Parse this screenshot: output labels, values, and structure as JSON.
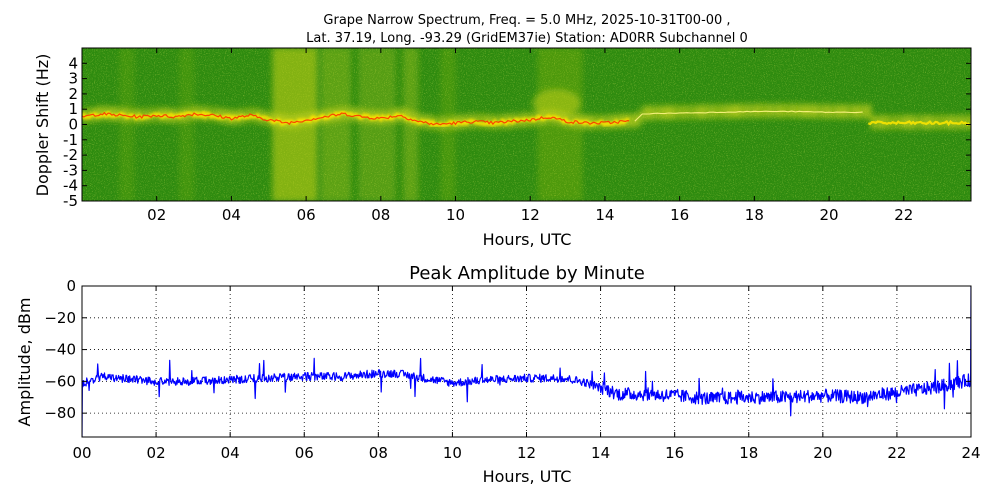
{
  "figure": {
    "title_line_1": "Grape Narrow Spectrum, Freq. = 5.0 MHz, 2025-10-31T00-00 ,",
    "title_line_2": "Lat.  37.19, Long. -93.29 (GridEM37ie) Station: AD0RR Subchannel 0"
  },
  "chart_data": [
    {
      "type": "heatmap",
      "name": "doppler-spectrogram",
      "xlabel": "Hours, UTC",
      "ylabel": "Doppler Shift (Hz)",
      "xlim": [
        0,
        23.8
      ],
      "ylim": [
        -5,
        5
      ],
      "x_ticks": [
        {
          "value": 2,
          "label": "02"
        },
        {
          "value": 4,
          "label": "04"
        },
        {
          "value": 6,
          "label": "06"
        },
        {
          "value": 8,
          "label": "08"
        },
        {
          "value": 10,
          "label": "10"
        },
        {
          "value": 12,
          "label": "12"
        },
        {
          "value": 14,
          "label": "14"
        },
        {
          "value": 16,
          "label": "16"
        },
        {
          "value": 18,
          "label": "18"
        },
        {
          "value": 20,
          "label": "20"
        },
        {
          "value": 22,
          "label": "22"
        }
      ],
      "y_ticks": [
        {
          "value": 4,
          "label": "4"
        },
        {
          "value": 3,
          "label": "3"
        },
        {
          "value": 2,
          "label": "2"
        },
        {
          "value": 1,
          "label": "1"
        },
        {
          "value": 0,
          "label": "0"
        },
        {
          "value": -1,
          "label": "-1"
        },
        {
          "value": -2,
          "label": "-2"
        },
        {
          "value": -3,
          "label": "-3"
        },
        {
          "value": -4,
          "label": "-4"
        },
        {
          "value": -5,
          "label": "-5"
        }
      ],
      "colors": {
        "background": "#2e8b0f",
        "mid": "#c8d41a",
        "peak": "#ff2a00"
      },
      "carrier_trace": {
        "hours": [
          0,
          0.5,
          1,
          1.5,
          2,
          2.5,
          3,
          3.5,
          4,
          4.5,
          5,
          5.5,
          6,
          6.5,
          7,
          7.5,
          8,
          8.5,
          9,
          9.5,
          10,
          10.5,
          11,
          11.5,
          12,
          12.5,
          13,
          13.5,
          14,
          14.5,
          14.8,
          15,
          16,
          17,
          18,
          19,
          20,
          21,
          21.05,
          22,
          23,
          23.8
        ],
        "doppler_hz": [
          0.5,
          0.7,
          0.6,
          0.5,
          0.6,
          0.5,
          0.7,
          0.6,
          0.4,
          0.6,
          0.3,
          0.1,
          0.3,
          0.5,
          0.7,
          0.5,
          0.4,
          0.6,
          0.2,
          0,
          0.1,
          0.2,
          0.1,
          0.2,
          0.3,
          0.5,
          0.2,
          0.1,
          0.1,
          0.2,
          0.2,
          0.7,
          0.75,
          0.8,
          0.85,
          0.85,
          0.8,
          0.8,
          0.1,
          0.1,
          0.1,
          0.1
        ]
      }
    },
    {
      "type": "line",
      "name": "peak-amplitude",
      "title": "Peak Amplitude by Minute",
      "xlabel": "Hours, UTC",
      "ylabel": "Amplitude, dBm",
      "xlim": [
        0,
        24
      ],
      "ylim": [
        -95,
        0
      ],
      "grid": true,
      "line_color": "#0000ff",
      "x_ticks": [
        {
          "value": 0,
          "label": "00"
        },
        {
          "value": 2,
          "label": "02"
        },
        {
          "value": 4,
          "label": "04"
        },
        {
          "value": 6,
          "label": "06"
        },
        {
          "value": 8,
          "label": "08"
        },
        {
          "value": 10,
          "label": "10"
        },
        {
          "value": 12,
          "label": "12"
        },
        {
          "value": 14,
          "label": "14"
        },
        {
          "value": 16,
          "label": "16"
        },
        {
          "value": 18,
          "label": "18"
        },
        {
          "value": 20,
          "label": "20"
        },
        {
          "value": 22,
          "label": "22"
        },
        {
          "value": 24,
          "label": "24"
        }
      ],
      "y_ticks": [
        {
          "value": 0,
          "label": "0"
        },
        {
          "value": -20,
          "label": "−20"
        },
        {
          "value": -40,
          "label": "−40"
        },
        {
          "value": -60,
          "label": "−60"
        },
        {
          "value": -80,
          "label": "−80"
        }
      ],
      "baseline": {
        "hours": [
          0,
          0.5,
          1,
          2,
          3,
          4,
          5,
          6,
          7,
          8,
          8.5,
          9,
          10,
          11,
          12,
          13,
          13.5,
          14,
          14.5,
          15,
          16,
          17,
          18,
          19,
          20,
          21,
          22,
          23,
          23.8,
          24
        ],
        "dbm": [
          -62,
          -57,
          -58,
          -60,
          -60,
          -59,
          -58,
          -57,
          -57,
          -55,
          -55,
          -57,
          -61,
          -59,
          -58,
          -58,
          -60,
          -64,
          -68,
          -68,
          -69,
          -71,
          -70,
          -70,
          -69,
          -70,
          -67,
          -64,
          -60,
          -59
        ]
      },
      "edge_spikes_dbm": {
        "start": -95,
        "end": 0
      }
    }
  ]
}
